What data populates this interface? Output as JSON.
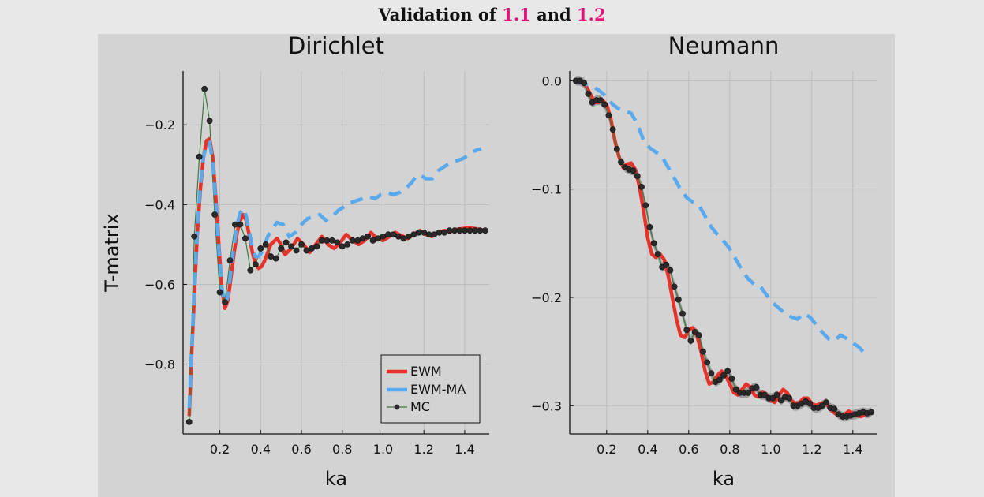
{
  "figure": {
    "title_prefix": "Validation of ",
    "ref1": "1.1",
    "title_mid": " and ",
    "ref2": "1.2",
    "ref_color": "#e0157a"
  },
  "colors": {
    "EWM": "#e5332b",
    "EWM-MA": "#5aa9ec",
    "MC": "#3b7a3b",
    "MC_marker": "#2a2a2a",
    "band": "#777777"
  },
  "chart_data": [
    {
      "type": "line",
      "title": "Dirichlet",
      "xlabel": "ka",
      "ylabel": "T-matrix",
      "xlim": [
        0.02,
        1.52
      ],
      "ylim": [
        -0.975,
        -0.065
      ],
      "xticks": [
        0.2,
        0.4,
        0.6,
        0.8,
        1.0,
        1.2,
        1.4
      ],
      "yticks": [
        -0.8,
        -0.6,
        -0.4,
        -0.2
      ],
      "ytick_labels": [
        "−0.8",
        "−0.6",
        "−0.4",
        "−0.2"
      ],
      "xtick_labels": [
        "0.2",
        "0.4",
        "0.6",
        "0.8",
        "1.0",
        "1.2",
        "1.4"
      ],
      "grid": true,
      "legend": {
        "position": "bottom-right",
        "entries": [
          "EWM",
          "EWM-MA",
          "MC"
        ]
      },
      "series": [
        {
          "name": "EWM",
          "style": "solid",
          "x": [
            0.05,
            0.06,
            0.075,
            0.09,
            0.105,
            0.12,
            0.135,
            0.15,
            0.165,
            0.18,
            0.195,
            0.21,
            0.225,
            0.24,
            0.255,
            0.27,
            0.285,
            0.3,
            0.315,
            0.33,
            0.345,
            0.36,
            0.375,
            0.39,
            0.405,
            0.42,
            0.435,
            0.45,
            0.48,
            0.5,
            0.52,
            0.55,
            0.58,
            0.61,
            0.64,
            0.67,
            0.7,
            0.73,
            0.76,
            0.79,
            0.82,
            0.85,
            0.88,
            0.91,
            0.94,
            0.97,
            1.0,
            1.03,
            1.06,
            1.09,
            1.12,
            1.15,
            1.18,
            1.21,
            1.24,
            1.27,
            1.3,
            1.33,
            1.36,
            1.39,
            1.42,
            1.45,
            1.5
          ],
          "y": [
            -0.93,
            -0.8,
            -0.63,
            -0.47,
            -0.36,
            -0.28,
            -0.24,
            -0.235,
            -0.28,
            -0.38,
            -0.5,
            -0.61,
            -0.66,
            -0.64,
            -0.58,
            -0.52,
            -0.47,
            -0.44,
            -0.425,
            -0.44,
            -0.48,
            -0.52,
            -0.55,
            -0.56,
            -0.555,
            -0.54,
            -0.52,
            -0.5,
            -0.485,
            -0.5,
            -0.525,
            -0.51,
            -0.485,
            -0.5,
            -0.52,
            -0.5,
            -0.48,
            -0.5,
            -0.51,
            -0.495,
            -0.475,
            -0.49,
            -0.5,
            -0.49,
            -0.47,
            -0.485,
            -0.49,
            -0.48,
            -0.47,
            -0.478,
            -0.485,
            -0.475,
            -0.465,
            -0.475,
            -0.48,
            -0.47,
            -0.465,
            -0.468,
            -0.462,
            -0.46,
            -0.458,
            -0.46,
            -0.465
          ]
        },
        {
          "name": "EWM-MA",
          "style": "dashed",
          "x": [
            0.05,
            0.06,
            0.075,
            0.09,
            0.105,
            0.12,
            0.135,
            0.15,
            0.165,
            0.18,
            0.195,
            0.21,
            0.225,
            0.24,
            0.255,
            0.27,
            0.285,
            0.3,
            0.315,
            0.33,
            0.345,
            0.36,
            0.375,
            0.39,
            0.405,
            0.42,
            0.435,
            0.45,
            0.48,
            0.51,
            0.54,
            0.57,
            0.6,
            0.63,
            0.66,
            0.69,
            0.72,
            0.75,
            0.78,
            0.81,
            0.84,
            0.87,
            0.9,
            0.93,
            0.96,
            0.99,
            1.02,
            1.05,
            1.08,
            1.11,
            1.14,
            1.16,
            1.18,
            1.21,
            1.24,
            1.27,
            1.3,
            1.33,
            1.36,
            1.39,
            1.42,
            1.45,
            1.48
          ],
          "y": [
            -0.91,
            -0.79,
            -0.62,
            -0.46,
            -0.35,
            -0.28,
            -0.25,
            -0.245,
            -0.29,
            -0.39,
            -0.51,
            -0.61,
            -0.65,
            -0.63,
            -0.56,
            -0.5,
            -0.45,
            -0.42,
            -0.41,
            -0.43,
            -0.47,
            -0.51,
            -0.53,
            -0.53,
            -0.52,
            -0.5,
            -0.48,
            -0.465,
            -0.445,
            -0.45,
            -0.48,
            -0.47,
            -0.45,
            -0.435,
            -0.43,
            -0.425,
            -0.44,
            -0.43,
            -0.415,
            -0.405,
            -0.395,
            -0.39,
            -0.385,
            -0.38,
            -0.385,
            -0.375,
            -0.37,
            -0.375,
            -0.37,
            -0.36,
            -0.345,
            -0.33,
            -0.325,
            -0.335,
            -0.335,
            -0.315,
            -0.305,
            -0.295,
            -0.29,
            -0.285,
            -0.275,
            -0.265,
            -0.26
          ]
        },
        {
          "name": "MC",
          "style": "markers",
          "x": [
            0.05,
            0.075,
            0.1,
            0.125,
            0.15,
            0.175,
            0.2,
            0.225,
            0.25,
            0.275,
            0.3,
            0.325,
            0.35,
            0.375,
            0.4,
            0.425,
            0.45,
            0.475,
            0.5,
            0.525,
            0.55,
            0.575,
            0.6,
            0.625,
            0.65,
            0.675,
            0.7,
            0.725,
            0.75,
            0.775,
            0.8,
            0.825,
            0.85,
            0.875,
            0.9,
            0.925,
            0.95,
            0.975,
            1.0,
            1.025,
            1.05,
            1.075,
            1.1,
            1.125,
            1.15,
            1.175,
            1.2,
            1.225,
            1.25,
            1.275,
            1.3,
            1.325,
            1.35,
            1.375,
            1.4,
            1.425,
            1.45,
            1.475,
            1.5
          ],
          "y": [
            -0.945,
            -0.48,
            -0.28,
            -0.11,
            -0.19,
            -0.425,
            -0.62,
            -0.645,
            -0.54,
            -0.45,
            -0.45,
            -0.485,
            -0.565,
            -0.55,
            -0.51,
            -0.5,
            -0.53,
            -0.535,
            -0.51,
            -0.495,
            -0.505,
            -0.515,
            -0.5,
            -0.515,
            -0.51,
            -0.505,
            -0.49,
            -0.49,
            -0.49,
            -0.495,
            -0.505,
            -0.5,
            -0.49,
            -0.49,
            -0.485,
            -0.48,
            -0.49,
            -0.485,
            -0.48,
            -0.475,
            -0.475,
            -0.48,
            -0.485,
            -0.48,
            -0.475,
            -0.47,
            -0.47,
            -0.475,
            -0.475,
            -0.47,
            -0.47,
            -0.465,
            -0.465,
            -0.465,
            -0.465,
            -0.465,
            -0.465,
            -0.465,
            -0.465
          ]
        }
      ]
    },
    {
      "type": "line",
      "title": "Neumann",
      "xlabel": "ka",
      "ylabel": "",
      "xlim": [
        0.02,
        1.52
      ],
      "ylim": [
        -0.326,
        0.009
      ],
      "xticks": [
        0.2,
        0.4,
        0.6,
        0.8,
        1.0,
        1.2,
        1.4
      ],
      "yticks": [
        -0.3,
        -0.2,
        -0.1,
        0.0
      ],
      "ytick_labels": [
        "−0.3",
        "−0.2",
        "−0.1",
        "0.0"
      ],
      "xtick_labels": [
        "0.2",
        "0.4",
        "0.6",
        "0.8",
        "1.0",
        "1.2",
        "1.4"
      ],
      "grid": true,
      "series": [
        {
          "name": "EWM",
          "style": "solid",
          "x": [
            0.05,
            0.08,
            0.1,
            0.12,
            0.14,
            0.16,
            0.18,
            0.2,
            0.22,
            0.24,
            0.26,
            0.28,
            0.3,
            0.32,
            0.34,
            0.36,
            0.38,
            0.4,
            0.42,
            0.44,
            0.46,
            0.48,
            0.5,
            0.52,
            0.54,
            0.56,
            0.58,
            0.6,
            0.62,
            0.64,
            0.66,
            0.68,
            0.7,
            0.72,
            0.74,
            0.76,
            0.78,
            0.8,
            0.82,
            0.84,
            0.86,
            0.88,
            0.9,
            0.92,
            0.94,
            0.96,
            0.98,
            1.0,
            1.02,
            1.04,
            1.06,
            1.08,
            1.1,
            1.12,
            1.14,
            1.16,
            1.18,
            1.2,
            1.22,
            1.24,
            1.26,
            1.28,
            1.3,
            1.32,
            1.34,
            1.36,
            1.38,
            1.4,
            1.42,
            1.44,
            1.46,
            1.48,
            1.5
          ],
          "y": [
            0.0,
            -0.002,
            -0.005,
            -0.012,
            -0.02,
            -0.02,
            -0.018,
            -0.022,
            -0.035,
            -0.055,
            -0.07,
            -0.08,
            -0.077,
            -0.076,
            -0.082,
            -0.098,
            -0.12,
            -0.145,
            -0.16,
            -0.163,
            -0.16,
            -0.165,
            -0.18,
            -0.2,
            -0.22,
            -0.235,
            -0.237,
            -0.23,
            -0.228,
            -0.235,
            -0.25,
            -0.268,
            -0.28,
            -0.278,
            -0.272,
            -0.268,
            -0.272,
            -0.28,
            -0.288,
            -0.29,
            -0.285,
            -0.28,
            -0.283,
            -0.29,
            -0.292,
            -0.287,
            -0.29,
            -0.295,
            -0.297,
            -0.29,
            -0.285,
            -0.288,
            -0.295,
            -0.298,
            -0.297,
            -0.293,
            -0.293,
            -0.298,
            -0.3,
            -0.298,
            -0.297,
            -0.3,
            -0.305,
            -0.308,
            -0.31,
            -0.308,
            -0.305,
            -0.307,
            -0.309,
            -0.31,
            -0.308,
            -0.306,
            -0.306
          ]
        },
        {
          "name": "EWM-MA",
          "style": "dashed",
          "x": [
            0.05,
            0.08,
            0.11,
            0.14,
            0.17,
            0.2,
            0.23,
            0.26,
            0.29,
            0.32,
            0.35,
            0.38,
            0.41,
            0.44,
            0.47,
            0.5,
            0.53,
            0.56,
            0.59,
            0.62,
            0.65,
            0.68,
            0.71,
            0.74,
            0.77,
            0.8,
            0.83,
            0.86,
            0.89,
            0.92,
            0.95,
            0.98,
            1.01,
            1.04,
            1.07,
            1.1,
            1.13,
            1.16,
            1.19,
            1.22,
            1.25,
            1.28,
            1.31,
            1.34,
            1.37,
            1.4,
            1.43,
            1.45
          ],
          "y": [
            0.0,
            -0.002,
            -0.004,
            -0.006,
            -0.01,
            -0.015,
            -0.022,
            -0.026,
            -0.028,
            -0.03,
            -0.04,
            -0.055,
            -0.062,
            -0.066,
            -0.07,
            -0.08,
            -0.09,
            -0.1,
            -0.108,
            -0.112,
            -0.115,
            -0.125,
            -0.135,
            -0.142,
            -0.148,
            -0.155,
            -0.165,
            -0.175,
            -0.183,
            -0.188,
            -0.19,
            -0.198,
            -0.205,
            -0.21,
            -0.215,
            -0.218,
            -0.22,
            -0.215,
            -0.218,
            -0.225,
            -0.232,
            -0.238,
            -0.24,
            -0.235,
            -0.238,
            -0.242,
            -0.246,
            -0.25
          ]
        },
        {
          "name": "MC",
          "style": "markers",
          "band": true,
          "x": [
            0.05,
            0.07,
            0.09,
            0.11,
            0.13,
            0.15,
            0.17,
            0.19,
            0.21,
            0.23,
            0.25,
            0.27,
            0.29,
            0.31,
            0.33,
            0.35,
            0.37,
            0.39,
            0.41,
            0.43,
            0.45,
            0.47,
            0.49,
            0.51,
            0.53,
            0.55,
            0.57,
            0.59,
            0.61,
            0.63,
            0.65,
            0.67,
            0.69,
            0.71,
            0.73,
            0.75,
            0.77,
            0.79,
            0.81,
            0.83,
            0.85,
            0.87,
            0.89,
            0.91,
            0.93,
            0.95,
            0.97,
            0.99,
            1.01,
            1.03,
            1.05,
            1.07,
            1.09,
            1.11,
            1.13,
            1.15,
            1.17,
            1.19,
            1.21,
            1.23,
            1.25,
            1.27,
            1.29,
            1.31,
            1.33,
            1.35,
            1.37,
            1.39,
            1.41,
            1.43,
            1.45,
            1.47,
            1.49
          ],
          "y": [
            0.0,
            0.0,
            -0.002,
            -0.012,
            -0.02,
            -0.018,
            -0.018,
            -0.022,
            -0.032,
            -0.045,
            -0.063,
            -0.075,
            -0.08,
            -0.082,
            -0.083,
            -0.088,
            -0.098,
            -0.115,
            -0.135,
            -0.15,
            -0.16,
            -0.172,
            -0.17,
            -0.175,
            -0.19,
            -0.202,
            -0.215,
            -0.23,
            -0.24,
            -0.232,
            -0.235,
            -0.25,
            -0.26,
            -0.27,
            -0.278,
            -0.276,
            -0.272,
            -0.268,
            -0.275,
            -0.285,
            -0.288,
            -0.288,
            -0.288,
            -0.284,
            -0.283,
            -0.29,
            -0.29,
            -0.293,
            -0.293,
            -0.29,
            -0.295,
            -0.292,
            -0.293,
            -0.3,
            -0.3,
            -0.298,
            -0.296,
            -0.298,
            -0.302,
            -0.302,
            -0.3,
            -0.297,
            -0.302,
            -0.303,
            -0.308,
            -0.31,
            -0.31,
            -0.309,
            -0.308,
            -0.307,
            -0.306,
            -0.307,
            -0.306
          ]
        }
      ]
    }
  ]
}
